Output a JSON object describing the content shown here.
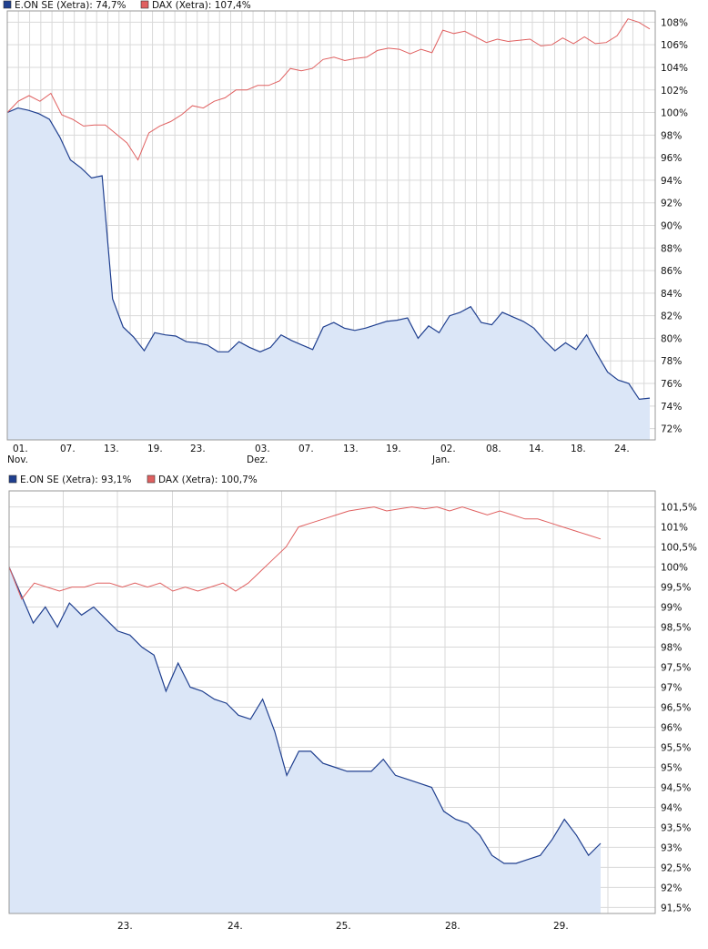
{
  "colors": {
    "eon": "#1f3f8f",
    "eon_fill": "#dbe6f7",
    "dax": "#e06060",
    "grid": "#d9d9d9",
    "frame": "#9a9a9a"
  },
  "chart_data": [
    {
      "type": "line",
      "legend": [
        {
          "name": "E.ON SE (Xetra)",
          "value": "74,7%",
          "color": "#1f3f8f"
        },
        {
          "name": "DAX (Xetra)",
          "value": "107,4%",
          "color": "#e06060"
        }
      ],
      "xticks": [
        "01.",
        "07.",
        "13.",
        "19.",
        "23.",
        "03.",
        "07.",
        "13.",
        "19.",
        "02.",
        "08.",
        "14.",
        "18.",
        "24."
      ],
      "xmonths": [
        "Nov.",
        "Dez.",
        "Jan."
      ],
      "yticks": [
        "72%",
        "74%",
        "76%",
        "78%",
        "80%",
        "82%",
        "84%",
        "86%",
        "88%",
        "90%",
        "92%",
        "94%",
        "96%",
        "98%",
        "100%",
        "102%",
        "104%",
        "106%",
        "108%"
      ],
      "ylim": [
        71,
        109
      ],
      "series": [
        {
          "name": "E.ON SE (Xetra)",
          "values": [
            100,
            100.4,
            100.2,
            99.9,
            99.4,
            97.8,
            95.8,
            95.1,
            94.2,
            94.4,
            83.5,
            81.0,
            80.1,
            78.9,
            80.5,
            80.3,
            80.2,
            79.7,
            79.6,
            79.4,
            78.8,
            78.8,
            79.7,
            79.2,
            78.8,
            79.2,
            80.3,
            79.8,
            79.4,
            79.0,
            81.0,
            81.4,
            80.9,
            80.7,
            80.9,
            81.2,
            81.5,
            81.6,
            81.8,
            80.0,
            81.1,
            80.5,
            82.0,
            82.3,
            82.8,
            81.4,
            81.2,
            82.3,
            81.9,
            81.5,
            80.9,
            79.8,
            78.9,
            79.6,
            79.0,
            80.3,
            78.6,
            77.0,
            76.3,
            76.0,
            74.6,
            74.7
          ]
        },
        {
          "name": "DAX (Xetra)",
          "values": [
            100,
            101.0,
            101.5,
            101.0,
            101.7,
            99.8,
            99.4,
            98.8,
            98.9,
            98.9,
            98.1,
            97.3,
            95.8,
            98.2,
            98.8,
            99.2,
            99.8,
            100.6,
            100.4,
            101.0,
            101.3,
            102.0,
            102.0,
            102.4,
            102.4,
            102.8,
            103.9,
            103.7,
            103.9,
            104.7,
            104.9,
            104.6,
            104.8,
            104.9,
            105.5,
            105.7,
            105.6,
            105.2,
            105.6,
            105.3,
            107.3,
            107.0,
            107.2,
            106.7,
            106.2,
            106.5,
            106.3,
            106.4,
            106.5,
            105.9,
            106.0,
            106.6,
            106.1,
            106.7,
            106.1,
            106.2,
            106.8,
            108.3,
            108.0,
            107.4
          ]
        }
      ]
    },
    {
      "type": "line",
      "legend": [
        {
          "name": "E.ON SE (Xetra)",
          "value": "93,1%",
          "color": "#1f3f8f"
        },
        {
          "name": "DAX (Xetra)",
          "value": "100,7%",
          "color": "#e06060"
        }
      ],
      "xticks": [
        "23.",
        "24.",
        "25.",
        "28.",
        "29."
      ],
      "yticks": [
        "91,5%",
        "92%",
        "92,5%",
        "93%",
        "93,5%",
        "94%",
        "94,5%",
        "95%",
        "95,5%",
        "96%",
        "96,5%",
        "97%",
        "97,5%",
        "98%",
        "98,5%",
        "99%",
        "99,5%",
        "100%",
        "100,5%",
        "101%",
        "101,5%"
      ],
      "ylim": [
        91.35,
        101.9
      ],
      "series": [
        {
          "name": "E.ON SE (Xetra)",
          "values": [
            100,
            99.3,
            98.6,
            99.0,
            98.5,
            99.1,
            98.8,
            99.0,
            98.7,
            98.4,
            98.3,
            98.0,
            97.8,
            96.9,
            97.6,
            97.0,
            96.9,
            96.7,
            96.6,
            96.3,
            96.2,
            96.7,
            95.9,
            94.8,
            95.4,
            95.4,
            95.1,
            95.0,
            94.9,
            94.9,
            94.9,
            95.2,
            94.8,
            94.7,
            94.6,
            94.5,
            93.9,
            93.7,
            93.6,
            93.3,
            92.8,
            92.6,
            92.6,
            92.7,
            92.8,
            93.2,
            93.7,
            93.3,
            92.8,
            93.1
          ]
        },
        {
          "name": "DAX (Xetra)",
          "values": [
            100,
            99.2,
            99.6,
            99.5,
            99.4,
            99.5,
            99.5,
            99.6,
            99.6,
            99.5,
            99.6,
            99.5,
            99.6,
            99.4,
            99.5,
            99.4,
            99.5,
            99.6,
            99.4,
            99.6,
            99.9,
            100.2,
            100.5,
            101.0,
            101.1,
            101.2,
            101.3,
            101.4,
            101.45,
            101.5,
            101.4,
            101.45,
            101.5,
            101.45,
            101.5,
            101.4,
            101.5,
            101.4,
            101.3,
            101.4,
            101.3,
            101.2,
            101.2,
            101.1,
            101.0,
            100.9,
            100.8,
            100.7
          ]
        }
      ]
    }
  ]
}
